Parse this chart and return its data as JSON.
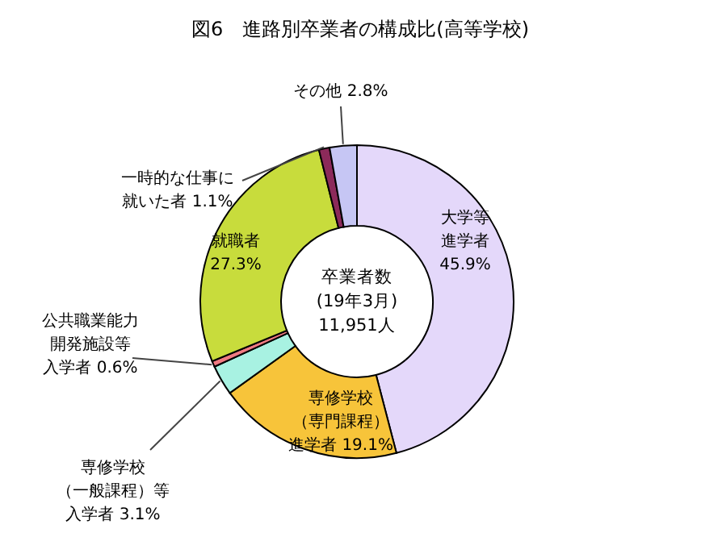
{
  "chart_data": {
    "type": "donut",
    "title": "図6　進路別卒業者の構成比(高等学校)",
    "categories": [
      "大学等進学者",
      "専修学校（専門課程）進学者",
      "専修学校（一般課程）等入学者",
      "公共職業能力開発施設等入学者",
      "就職者",
      "一時的な仕事に就いた者",
      "その他"
    ],
    "values": [
      45.9,
      19.1,
      3.1,
      0.6,
      27.3,
      1.1,
      2.8
    ],
    "value_labels": [
      "45.9%",
      "19.1%",
      "3.1%",
      "0.6%",
      "27.3%",
      "1.1%",
      "2.8%"
    ],
    "colors": [
      "#e4d8fa",
      "#f7c43a",
      "#a8f2e2",
      "#f07a82",
      "#c8dc3c",
      "#8c2a5a",
      "#c6c6f4"
    ],
    "annotations": [
      "卒業者数\n(19年3月)\n11,951人"
    ]
  }
}
